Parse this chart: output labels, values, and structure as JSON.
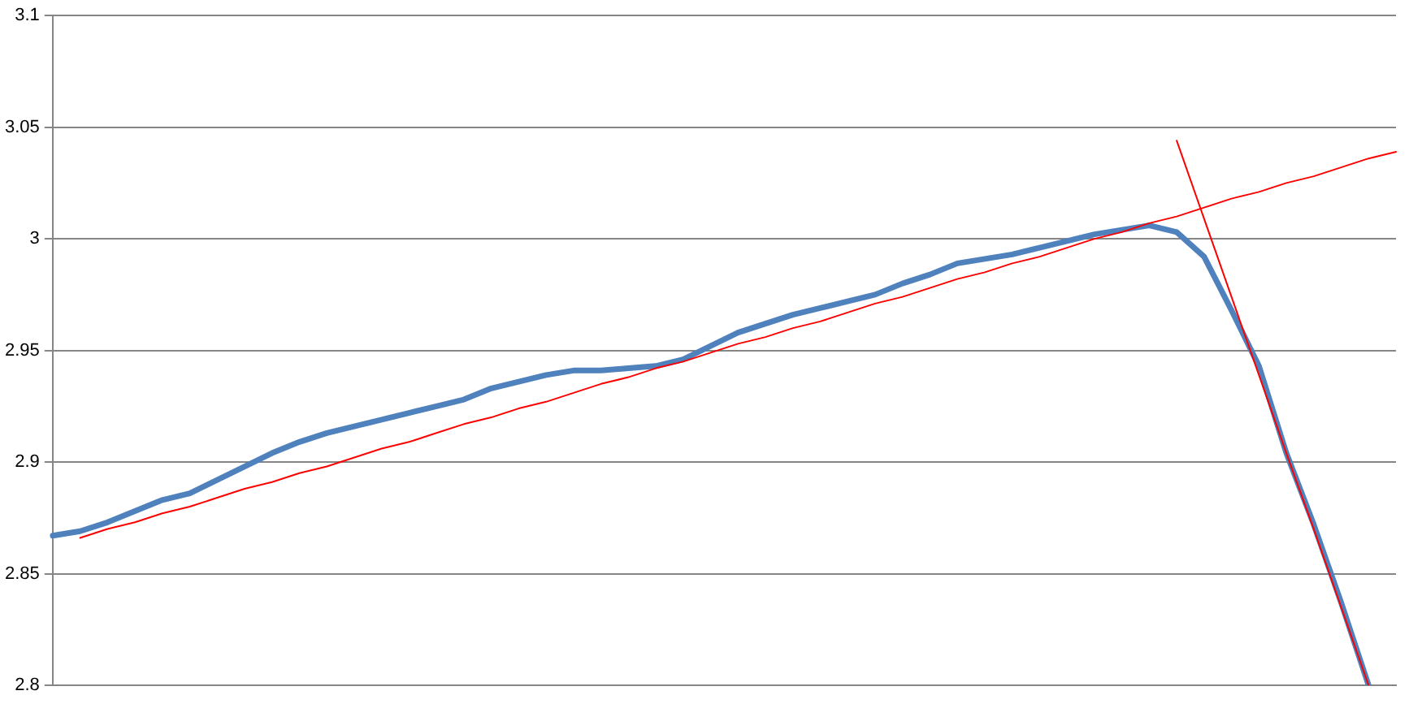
{
  "chart_data": {
    "type": "line",
    "categories": [
      null,
      null,
      null,
      null,
      null,
      null,
      null,
      null,
      null,
      null,
      null,
      null,
      null,
      null,
      null,
      null,
      null,
      null,
      null,
      null,
      null,
      null,
      null,
      null,
      null,
      null,
      null,
      null,
      null,
      null,
      null,
      null,
      null,
      null,
      null,
      null,
      null,
      null,
      null,
      null,
      null,
      null,
      null,
      null,
      null,
      null,
      null,
      null,
      null,
      null
    ],
    "ylim": [
      2.8,
      3.1
    ],
    "yticks": [
      2.8,
      2.85,
      2.9,
      2.95,
      3,
      3.05,
      3.1
    ],
    "grid": "y",
    "tick_labels": "y",
    "legend": false,
    "marker": "none",
    "series": [
      {
        "color": "#4f81bd",
        "values": [
          2.867,
          2.869,
          2.873,
          2.878,
          2.883,
          2.886,
          2.892,
          2.898,
          2.904,
          2.909,
          2.913,
          2.916,
          2.919,
          2.922,
          2.925,
          2.928,
          2.933,
          2.936,
          2.939,
          2.941,
          2.941,
          2.942,
          2.943,
          2.946,
          2.952,
          2.958,
          2.962,
          2.966,
          2.969,
          2.972,
          2.975,
          2.98,
          2.984,
          2.989,
          2.991,
          2.993,
          2.996,
          2.999,
          3.002,
          3.004,
          3.006,
          3.003,
          2.992,
          2.968,
          2.943,
          2.904,
          2.872,
          2.837,
          2.8,
          null
        ]
      },
      {
        "type": "line",
        "color": "#ff0000",
        "values": [
          null,
          2.866,
          2.87,
          2.873,
          2.877,
          2.88,
          2.884,
          2.888,
          2.891,
          2.895,
          2.898,
          2.902,
          2.906,
          2.909,
          2.913,
          2.917,
          2.92,
          2.924,
          2.927,
          2.931,
          2.935,
          2.938,
          2.942,
          2.945,
          2.949,
          2.953,
          2.956,
          2.96,
          2.963,
          2.967,
          2.971,
          2.974,
          2.978,
          2.982,
          2.985,
          2.989,
          2.992,
          2.996,
          3.0,
          3.003,
          3.007,
          3.01,
          3.014,
          3.018,
          3.021,
          3.025,
          3.028,
          3.032,
          3.036,
          3.039
        ]
      },
      {
        "type": "line",
        "color": "#ff0000",
        "values": [
          null,
          null,
          null,
          null,
          null,
          null,
          null,
          null,
          null,
          null,
          null,
          null,
          null,
          null,
          null,
          null,
          null,
          null,
          null,
          null,
          null,
          null,
          null,
          null,
          null,
          null,
          null,
          null,
          null,
          null,
          null,
          null,
          null,
          null,
          null,
          null,
          null,
          null,
          null,
          null,
          null,
          3.044,
          3.009,
          2.974,
          2.939,
          2.904,
          2.87,
          2.835,
          2.8,
          null
        ]
      }
    ]
  }
}
